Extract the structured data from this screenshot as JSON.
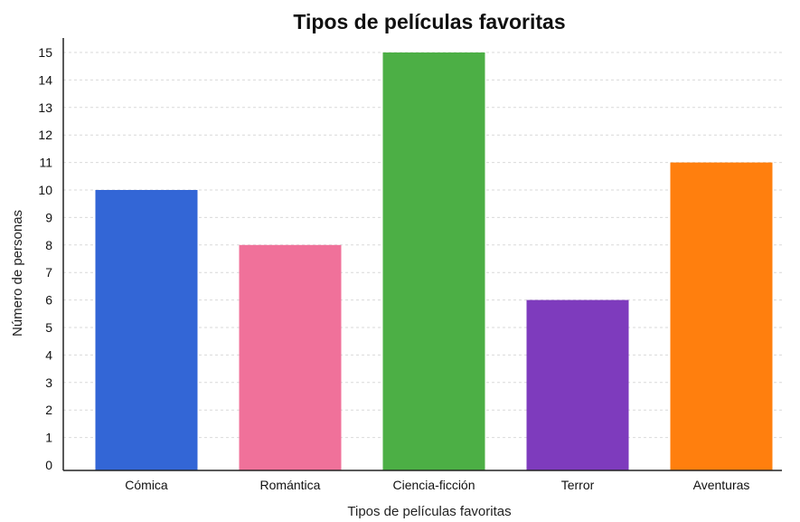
{
  "chart_data": {
    "type": "bar",
    "title": "Tipos de películas favoritas",
    "xlabel": "Tipos de películas favoritas",
    "ylabel": "Número de personas",
    "categories": [
      "Cómica",
      "Romántica",
      "Ciencia-ficción",
      "Terror",
      "Aventuras"
    ],
    "values": [
      10,
      8,
      15,
      6,
      11
    ],
    "colors": [
      "#3366d6",
      "#f0719a",
      "#4caf45",
      "#7e3bbd",
      "#ff7f0e"
    ],
    "ylim": [
      0,
      15
    ],
    "yticks": [
      "0",
      "1",
      "2",
      "3",
      "4",
      "5",
      "6",
      "7",
      "8",
      "9",
      "10",
      "11",
      "12",
      "13",
      "14",
      "15"
    ],
    "grid": true
  }
}
